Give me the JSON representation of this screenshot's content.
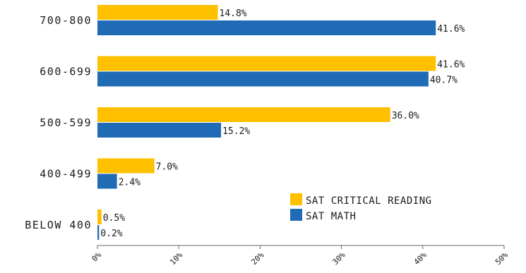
{
  "chart_data": {
    "type": "bar",
    "orientation": "horizontal",
    "categories": [
      "700-800",
      "600-699",
      "500-599",
      "400-499",
      "BELOW 400"
    ],
    "series": [
      {
        "name": "SAT CRITICAL READING",
        "color": "#FFC000",
        "values": [
          14.8,
          41.6,
          36.0,
          7.0,
          0.5
        ],
        "labels": [
          "14.8%",
          "41.6%",
          "36.0%",
          "7.0%",
          "0.5%"
        ]
      },
      {
        "name": "SAT MATH",
        "color": "#1F6BB5",
        "values": [
          41.6,
          40.7,
          15.2,
          2.4,
          0.2
        ],
        "labels": [
          "41.6%",
          "40.7%",
          "15.2%",
          "2.4%",
          "0.2%"
        ]
      }
    ],
    "xlim": [
      0,
      50
    ],
    "xticks": [
      0,
      10,
      20,
      30,
      40,
      50
    ],
    "xtick_labels": [
      "0%",
      "10%",
      "20%",
      "30%",
      "40%",
      "50%"
    ],
    "grid": false,
    "legend_position": "lower-right"
  }
}
